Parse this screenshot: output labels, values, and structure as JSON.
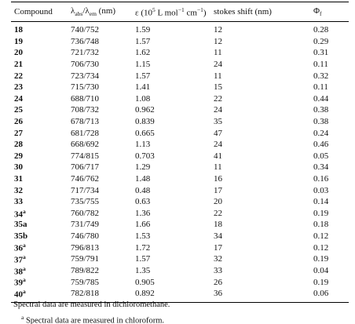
{
  "table": {
    "header": [
      [
        {
          "text": "Compound"
        }
      ],
      [
        {
          "text": "λ"
        },
        {
          "sub": "abs"
        },
        {
          "text": "/λ"
        },
        {
          "sub": "em"
        },
        {
          "text": " (nm)"
        }
      ],
      [
        {
          "text": "ε (10"
        },
        {
          "sup": "5"
        },
        {
          "text": " L mol"
        },
        {
          "sup": "−1"
        },
        {
          "text": " cm"
        },
        {
          "sup": "−1"
        },
        {
          "text": ")"
        }
      ],
      [
        {
          "text": "stokes shift (nm)"
        }
      ],
      [
        {
          "text": "Φ"
        },
        {
          "sub": "f"
        }
      ]
    ],
    "rows": [
      [
        {
          "label": "18"
        },
        "740/752",
        "1.59",
        "12",
        "0.28"
      ],
      [
        {
          "label": "19"
        },
        "736/748",
        "1.57",
        "12",
        "0.29"
      ],
      [
        {
          "label": "20"
        },
        "721/732",
        "1.62",
        "11",
        "0.31"
      ],
      [
        {
          "label": "21"
        },
        "706/730",
        "1.15",
        "24",
        "0.11"
      ],
      [
        {
          "label": "22"
        },
        "723/734",
        "1.57",
        "11",
        "0.32"
      ],
      [
        {
          "label": "23"
        },
        "715/730",
        "1.41",
        "15",
        "0.11"
      ],
      [
        {
          "label": "24"
        },
        "688/710",
        "1.08",
        "22",
        "0.44"
      ],
      [
        {
          "label": "25"
        },
        "708/732",
        "0.962",
        "24",
        "0.38"
      ],
      [
        {
          "label": "26"
        },
        "678/713",
        "0.839",
        "35",
        "0.38"
      ],
      [
        {
          "label": "27"
        },
        "681/728",
        "0.665",
        "47",
        "0.24"
      ],
      [
        {
          "label": "28"
        },
        "668/692",
        "1.13",
        "24",
        "0.46"
      ],
      [
        {
          "label": "29"
        },
        "774/815",
        "0.703",
        "41",
        "0.05"
      ],
      [
        {
          "label": "30"
        },
        "706/717",
        "1.29",
        "11",
        "0.34"
      ],
      [
        {
          "label": "31"
        },
        "746/762",
        "1.48",
        "16",
        "0.16"
      ],
      [
        {
          "label": "32"
        },
        "717/734",
        "0.48",
        "17",
        "0.03"
      ],
      [
        {
          "label": "33"
        },
        "735/755",
        "0.63",
        "20",
        "0.14"
      ],
      [
        {
          "label": "34",
          "note": "a"
        },
        "760/782",
        "1.36",
        "22",
        "0.19"
      ],
      [
        {
          "label": "35a"
        },
        "731/749",
        "1.66",
        "18",
        "0.18"
      ],
      [
        {
          "label": "35b"
        },
        "746/780",
        "1.53",
        "34",
        "0.12"
      ],
      [
        {
          "label": "36",
          "note": "a"
        },
        "796/813",
        "1.72",
        "17",
        "0.12"
      ],
      [
        {
          "label": "37",
          "note": "a"
        },
        "759/791",
        "1.57",
        "32",
        "0.19"
      ],
      [
        {
          "label": "38",
          "note": "a"
        },
        "789/822",
        "1.35",
        "33",
        "0.04"
      ],
      [
        {
          "label": "39",
          "note": "a"
        },
        "759/785",
        "0.905",
        "26",
        "0.19"
      ],
      [
        {
          "label": "40",
          "note": "a"
        },
        "782/818",
        "0.892",
        "36",
        "0.06"
      ]
    ]
  },
  "footnotes": [
    {
      "text": "Spectral data are measured in dichloromethane."
    },
    {
      "mark": "a",
      "text": "Spectral data are measured in chloroform."
    }
  ]
}
